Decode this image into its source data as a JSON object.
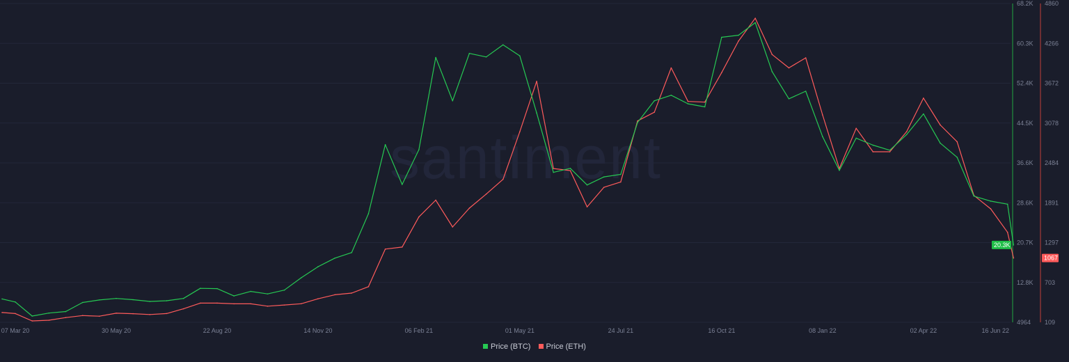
{
  "watermark": "santiment",
  "colors": {
    "background": "#1a1d2b",
    "btc": "#26c953",
    "eth": "#ff5b5b",
    "grid": "#23273a"
  },
  "legend": [
    {
      "label": "Price (BTC)",
      "color": "#26c953"
    },
    {
      "label": "Price (ETH)",
      "color": "#ff5b5b"
    }
  ],
  "chart_data": {
    "type": "line",
    "x_ticks": [
      "07 Mar 20",
      "30 May 20",
      "22 Aug 20",
      "14 Nov 20",
      "06 Feb 21",
      "01 May 21",
      "24 Jul 21",
      "16 Oct 21",
      "08 Jan 22",
      "02 Apr 22",
      "16 Jun 22"
    ],
    "x_tick_dates": [
      "2020-03-07",
      "2020-05-30",
      "2020-08-22",
      "2020-11-14",
      "2021-02-06",
      "2021-05-01",
      "2021-07-24",
      "2021-10-16",
      "2022-01-08",
      "2022-04-02",
      "2022-06-16"
    ],
    "y_left_axis": {
      "series": "Price (BTC)",
      "range": [
        4964,
        68200
      ],
      "ticks": [
        "4964",
        "12.8K",
        "20.7K",
        "28.6K",
        "36.6K",
        "44.5K",
        "52.4K",
        "60.3K",
        "68.2K"
      ],
      "last_value_badge": "20.3K"
    },
    "y_right_axis": {
      "series": "Price (ETH)",
      "range": [
        109,
        4860
      ],
      "ticks": [
        "109",
        "703",
        "1297",
        "1891",
        "2484",
        "3078",
        "3672",
        "4266",
        "4860"
      ],
      "last_value_badge": "1067"
    },
    "x": [
      "2020-02-25",
      "2020-03-07",
      "2020-03-21",
      "2020-04-04",
      "2020-04-18",
      "2020-05-02",
      "2020-05-16",
      "2020-05-30",
      "2020-06-13",
      "2020-06-27",
      "2020-07-11",
      "2020-07-25",
      "2020-08-08",
      "2020-08-22",
      "2020-09-05",
      "2020-09-19",
      "2020-10-03",
      "2020-10-17",
      "2020-10-31",
      "2020-11-14",
      "2020-11-28",
      "2020-12-12",
      "2020-12-26",
      "2021-01-09",
      "2021-01-23",
      "2021-02-06",
      "2021-02-20",
      "2021-03-06",
      "2021-03-20",
      "2021-04-03",
      "2021-04-17",
      "2021-05-01",
      "2021-05-15",
      "2021-05-29",
      "2021-06-12",
      "2021-06-26",
      "2021-07-10",
      "2021-07-24",
      "2021-08-07",
      "2021-08-21",
      "2021-09-04",
      "2021-09-18",
      "2021-10-02",
      "2021-10-16",
      "2021-10-30",
      "2021-11-13",
      "2021-11-27",
      "2021-12-11",
      "2021-12-25",
      "2022-01-08",
      "2022-01-22",
      "2022-02-05",
      "2022-02-19",
      "2022-03-05",
      "2022-03-19",
      "2022-04-02",
      "2022-04-16",
      "2022-04-30",
      "2022-05-14",
      "2022-05-28",
      "2022-06-11",
      "2022-06-16"
    ],
    "series": [
      {
        "name": "Price (BTC)",
        "values": [
          9600,
          9000,
          6200,
          6800,
          7100,
          8900,
          9400,
          9700,
          9450,
          9100,
          9250,
          9700,
          11700,
          11650,
          10200,
          11100,
          10600,
          11350,
          13800,
          16000,
          17700,
          18800,
          26500,
          40200,
          32300,
          39200,
          57500,
          48900,
          58300,
          57600,
          60000,
          57800,
          46500,
          34700,
          35500,
          32200,
          33800,
          34300,
          44600,
          48900,
          50000,
          48300,
          47700,
          61500,
          61900,
          64400,
          54700,
          49300,
          50800,
          41800,
          35100,
          41500,
          40100,
          39100,
          42200,
          46300,
          40500,
          37700,
          30000,
          29000,
          28400,
          20300
        ]
      },
      {
        "name": "Price (ETH)",
        "values": [
          255,
          240,
          130,
          140,
          180,
          210,
          200,
          245,
          238,
          225,
          240,
          310,
          395,
          395,
          385,
          385,
          350,
          367,
          386,
          460,
          520,
          545,
          640,
          1200,
          1230,
          1680,
          1930,
          1530,
          1810,
          2020,
          2240,
          2950,
          3700,
          2400,
          2370,
          1830,
          2120,
          2200,
          3110,
          3240,
          3900,
          3400,
          3390,
          3830,
          4300,
          4640,
          4100,
          3900,
          4050,
          3200,
          2400,
          3000,
          2650,
          2650,
          2950,
          3450,
          3050,
          2800,
          2000,
          1800,
          1450,
          1067
        ]
      }
    ],
    "grid": "horizontal",
    "legend_position": "bottom-center"
  }
}
